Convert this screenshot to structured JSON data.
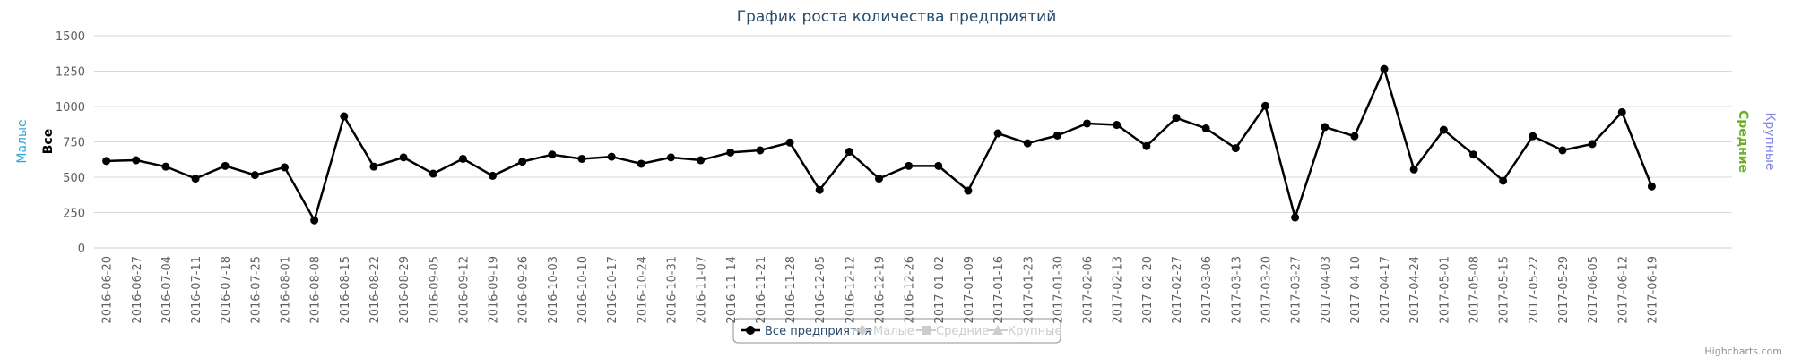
{
  "chart_data": {
    "type": "line",
    "title": "График роста количества предприятий",
    "y_axis_title": "Все",
    "categories": [
      "2016-06-20",
      "2016-06-27",
      "2016-07-04",
      "2016-07-11",
      "2016-07-18",
      "2016-07-25",
      "2016-08-01",
      "2016-08-08",
      "2016-08-15",
      "2016-08-22",
      "2016-08-29",
      "2016-09-05",
      "2016-09-12",
      "2016-09-19",
      "2016-09-26",
      "2016-10-03",
      "2016-10-10",
      "2016-10-17",
      "2016-10-24",
      "2016-10-31",
      "2016-11-07",
      "2016-11-14",
      "2016-11-21",
      "2016-11-28",
      "2016-12-05",
      "2016-12-12",
      "2016-12-19",
      "2016-12-26",
      "2017-01-02",
      "2017-01-09",
      "2017-01-16",
      "2017-01-23",
      "2017-01-30",
      "2017-02-06",
      "2017-02-13",
      "2017-02-20",
      "2017-02-27",
      "2017-03-06",
      "2017-03-13",
      "2017-03-20",
      "2017-03-27",
      "2017-04-03",
      "2017-04-10",
      "2017-04-17",
      "2017-04-24",
      "2017-05-01",
      "2017-05-08",
      "2017-05-15",
      "2017-05-22",
      "2017-05-29",
      "2017-06-05",
      "2017-06-12",
      "2017-06-19"
    ],
    "series": [
      {
        "name": "Все предприятия",
        "color": "#000000",
        "values": [
          615,
          620,
          575,
          490,
          580,
          515,
          570,
          195,
          930,
          575,
          640,
          525,
          630,
          510,
          610,
          660,
          630,
          645,
          595,
          640,
          620,
          675,
          690,
          745,
          410,
          680,
          490,
          580,
          580,
          405,
          810,
          740,
          795,
          880,
          870,
          720,
          920,
          845,
          705,
          1005,
          215,
          855,
          790,
          1265,
          555,
          835,
          660,
          475,
          790,
          690,
          735,
          960,
          435
        ]
      }
    ],
    "hidden_series": [
      {
        "name": "Малые",
        "color": "#2ba8d6",
        "symbol": "diamond",
        "axis_side": "left"
      },
      {
        "name": "Средние",
        "color": "#6ab023",
        "symbol": "square",
        "axis_side": "right"
      },
      {
        "name": "Крупные",
        "color": "#8085e9",
        "symbol": "triangle",
        "axis_side": "right"
      }
    ],
    "ylim": [
      0,
      1500
    ],
    "yticks": [
      0,
      250,
      500,
      750,
      1000,
      1250,
      1500
    ],
    "grid": true,
    "legend": "bottom",
    "credits": "Highcharts.com"
  }
}
